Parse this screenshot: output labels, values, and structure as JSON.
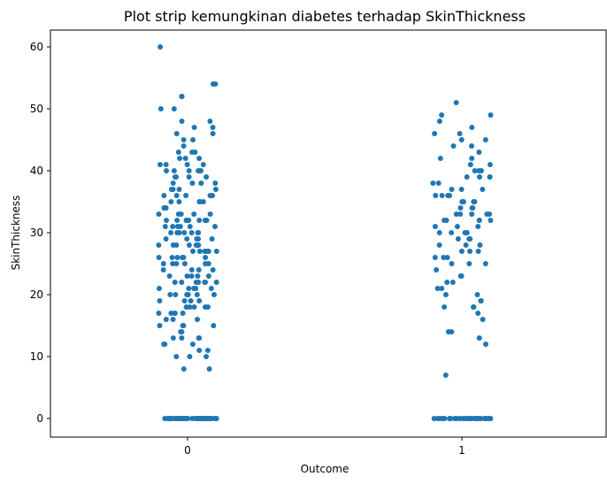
{
  "chart_data": {
    "type": "scatter",
    "title": "Plot strip kemungkinan diabetes terhadap SkinThickness",
    "xlabel": "Outcome",
    "ylabel": "SkinThickness",
    "categories": [
      "0",
      "1"
    ],
    "ylim": [
      -3,
      63
    ],
    "y_ticks": [
      0,
      10,
      20,
      30,
      40,
      50,
      60
    ],
    "grid": false,
    "legend": "none",
    "marker_color": "#1f77b4",
    "series": [
      {
        "category": "0",
        "values": [
          0,
          0,
          0,
          0,
          0,
          0,
          0,
          0,
          0,
          0,
          0,
          0,
          0,
          0,
          0,
          0,
          0,
          0,
          0,
          0,
          0,
          0,
          0,
          0,
          0,
          0,
          0,
          0,
          0,
          0,
          0,
          0,
          0,
          0,
          0,
          0,
          0,
          0,
          0,
          0,
          8,
          8,
          10,
          10,
          10,
          11,
          11,
          12,
          12,
          12,
          13,
          13,
          13,
          13,
          14,
          14,
          15,
          15,
          15,
          15,
          16,
          16,
          16,
          17,
          17,
          17,
          17,
          17,
          18,
          18,
          18,
          18,
          18,
          19,
          19,
          19,
          19,
          20,
          20,
          20,
          20,
          20,
          20,
          21,
          21,
          21,
          21,
          21,
          22,
          22,
          22,
          22,
          22,
          22,
          22,
          23,
          23,
          23,
          23,
          23,
          24,
          24,
          24,
          24,
          25,
          25,
          25,
          25,
          25,
          25,
          26,
          26,
          26,
          26,
          26,
          26,
          27,
          27,
          27,
          27,
          27,
          27,
          28,
          28,
          28,
          28,
          28,
          28,
          28,
          29,
          29,
          29,
          29,
          29,
          30,
          30,
          30,
          30,
          30,
          30,
          30,
          31,
          31,
          31,
          31,
          31,
          31,
          32,
          32,
          32,
          32,
          32,
          32,
          32,
          32,
          33,
          33,
          33,
          33,
          33,
          34,
          34,
          34,
          34,
          35,
          35,
          35,
          35,
          35,
          36,
          36,
          36,
          36,
          36,
          37,
          37,
          37,
          37,
          38,
          38,
          38,
          38,
          39,
          39,
          39,
          39,
          40,
          40,
          40,
          40,
          40,
          40,
          41,
          41,
          41,
          41,
          42,
          42,
          42,
          43,
          43,
          43,
          44,
          45,
          45,
          46,
          46,
          47,
          47,
          48,
          48,
          50,
          50,
          52,
          52,
          54,
          54,
          60
        ]
      },
      {
        "category": "1",
        "values": [
          0,
          0,
          0,
          0,
          0,
          0,
          0,
          0,
          0,
          0,
          0,
          0,
          0,
          0,
          0,
          0,
          0,
          0,
          0,
          0,
          0,
          0,
          0,
          0,
          0,
          0,
          0,
          0,
          0,
          0,
          7,
          12,
          13,
          14,
          14,
          16,
          17,
          18,
          18,
          18,
          19,
          19,
          20,
          20,
          21,
          21,
          22,
          22,
          23,
          23,
          24,
          25,
          25,
          25,
          26,
          26,
          26,
          27,
          27,
          27,
          28,
          28,
          28,
          29,
          29,
          29,
          30,
          30,
          30,
          30,
          31,
          31,
          31,
          32,
          32,
          32,
          32,
          32,
          33,
          33,
          33,
          33,
          33,
          34,
          34,
          34,
          35,
          35,
          35,
          35,
          36,
          36,
          36,
          36,
          37,
          37,
          37,
          38,
          38,
          39,
          39,
          39,
          39,
          40,
          40,
          40,
          41,
          41,
          42,
          42,
          43,
          44,
          44,
          45,
          45,
          46,
          46,
          47,
          48,
          49,
          49,
          51
        ]
      }
    ]
  }
}
